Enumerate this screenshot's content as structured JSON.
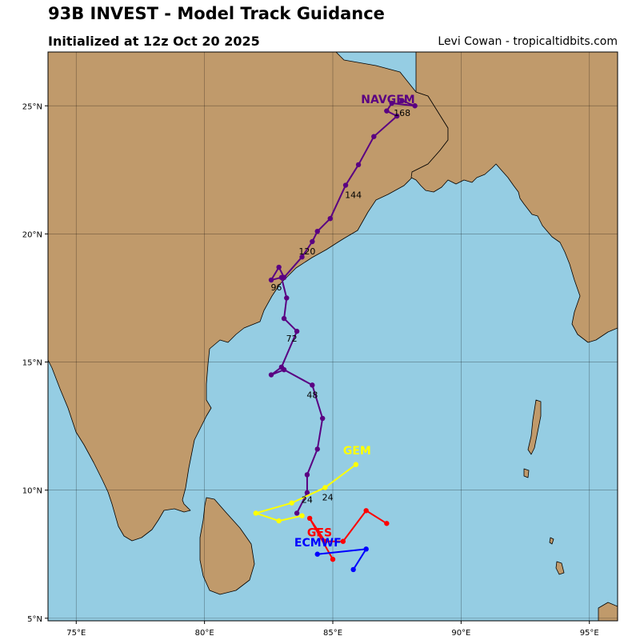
{
  "header": {
    "title": "93B INVEST - Model Track Guidance",
    "subtitle": "Initialized at 12z Oct 20 2025",
    "credit": "Levi Cowan - tropicaltidbits.com"
  },
  "colors": {
    "ocean": "#95cde3",
    "land": "#c09a6b",
    "NAVGEM": "#5a0082",
    "GEM": "#ffff00",
    "GFS": "#ff0000",
    "ECMWF": "#0000ff"
  },
  "chart_data": {
    "type": "map-track",
    "xlim": [
      73.9,
      96.1
    ],
    "ylim": [
      4.9,
      27.1
    ],
    "x_ticks": [
      {
        "value": 75,
        "label": "75°E"
      },
      {
        "value": 80,
        "label": "80°E"
      },
      {
        "value": 85,
        "label": "85°E"
      },
      {
        "value": 90,
        "label": "90°E"
      },
      {
        "value": 95,
        "label": "95°E"
      }
    ],
    "y_ticks": [
      {
        "value": 5,
        "label": "5°N"
      },
      {
        "value": 10,
        "label": "10°N"
      },
      {
        "value": 15,
        "label": "15°N"
      },
      {
        "value": 20,
        "label": "20°N"
      },
      {
        "value": 25,
        "label": "25°N"
      }
    ],
    "grid": true,
    "models": [
      {
        "name": "NAVGEM",
        "label_at": [
          86.1,
          25.1
        ],
        "points": [
          [
            83.6,
            9.1
          ],
          [
            84.0,
            9.9
          ],
          [
            84.0,
            10.6
          ],
          [
            84.4,
            11.6
          ],
          [
            84.6,
            12.8
          ],
          [
            84.2,
            14.1
          ],
          [
            83.1,
            14.7
          ],
          [
            82.6,
            14.5
          ],
          [
            83.0,
            14.8
          ],
          [
            83.6,
            16.2
          ],
          [
            83.1,
            16.7
          ],
          [
            83.2,
            17.5
          ],
          [
            83.0,
            18.3
          ],
          [
            82.6,
            18.2
          ],
          [
            82.9,
            18.7
          ],
          [
            83.1,
            18.3
          ],
          [
            83.8,
            19.1
          ],
          [
            84.2,
            19.7
          ],
          [
            84.4,
            20.1
          ],
          [
            84.9,
            20.6
          ],
          [
            85.5,
            21.9
          ],
          [
            86.0,
            22.7
          ],
          [
            86.6,
            23.8
          ],
          [
            87.5,
            24.6
          ],
          [
            87.1,
            24.8
          ],
          [
            87.3,
            25.1
          ],
          [
            88.2,
            25.0
          ],
          [
            87.7,
            25.2
          ]
        ],
        "hour_labels": [
          {
            "text": "24",
            "at": [
              84.0,
              9.5
            ]
          },
          {
            "text": "48",
            "at": [
              84.2,
              13.6
            ]
          },
          {
            "text": "72",
            "at": [
              83.4,
              15.8
            ]
          },
          {
            "text": "96",
            "at": [
              82.8,
              17.8
            ]
          },
          {
            "text": "120",
            "at": [
              84.0,
              19.2
            ]
          },
          {
            "text": "144",
            "at": [
              85.8,
              21.4
            ]
          },
          {
            "text": "168",
            "at": [
              87.7,
              24.6
            ]
          }
        ]
      },
      {
        "name": "GEM",
        "label_at": [
          85.4,
          11.4
        ],
        "points": [
          [
            85.9,
            11.0
          ],
          [
            84.7,
            10.1
          ],
          [
            83.4,
            9.5
          ],
          [
            82.0,
            9.1
          ],
          [
            82.9,
            8.8
          ],
          [
            83.8,
            9.0
          ]
        ],
        "hour_labels": [
          {
            "text": "24",
            "at": [
              84.8,
              9.6
            ]
          }
        ]
      },
      {
        "name": "GFS",
        "label_at": [
          84.0,
          8.2
        ],
        "points": [
          [
            87.1,
            8.7
          ],
          [
            86.3,
            9.2
          ],
          [
            85.4,
            8.0
          ],
          [
            84.7,
            8.0
          ],
          [
            84.1,
            8.9
          ],
          [
            85.0,
            7.3
          ]
        ],
        "hour_labels": []
      },
      {
        "name": "ECMWF",
        "label_at": [
          83.5,
          7.8
        ],
        "points": [
          [
            85.8,
            6.9
          ],
          [
            86.3,
            7.7
          ],
          [
            84.4,
            7.5
          ]
        ],
        "hour_labels": []
      }
    ]
  }
}
